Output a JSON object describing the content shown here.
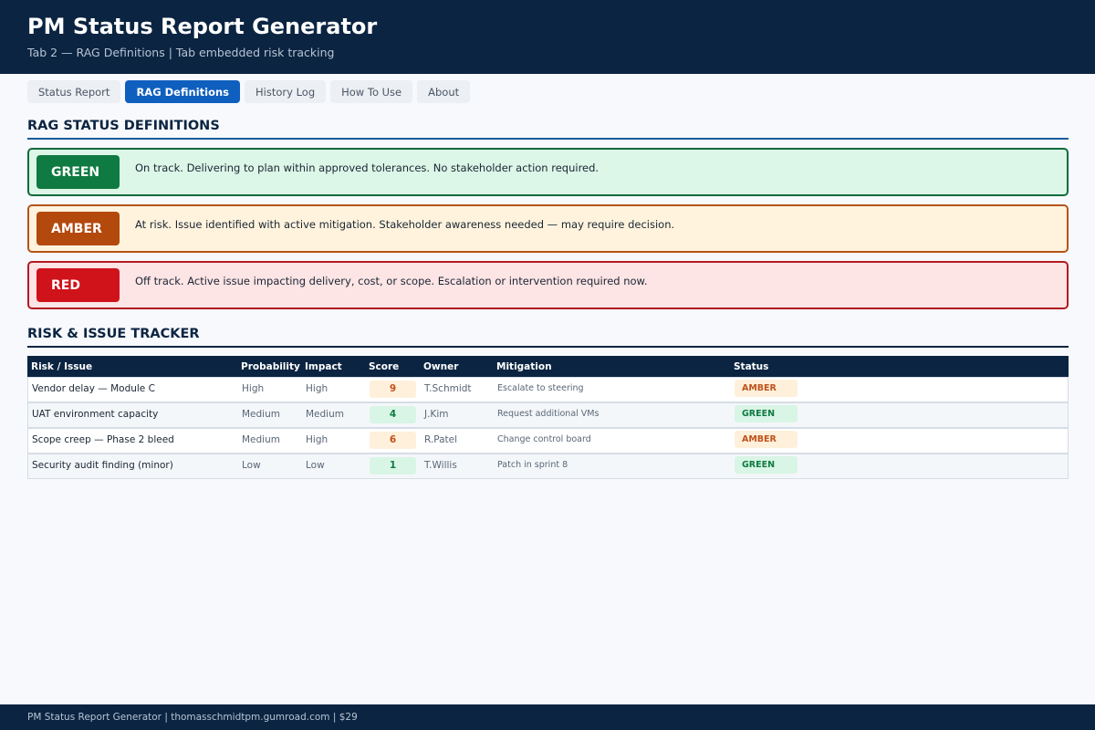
{
  "header": {
    "title": "PM Status Report Generator",
    "subtitle": "Tab 2 — RAG Definitions  |  Tab embedded risk tracking"
  },
  "tabs": [
    {
      "label": "Status Report",
      "active": false
    },
    {
      "label": "RAG Definitions",
      "active": true
    },
    {
      "label": "History Log",
      "active": false
    },
    {
      "label": "How To Use",
      "active": false
    },
    {
      "label": "About",
      "active": false
    }
  ],
  "rag": {
    "section_title": "RAG STATUS DEFINITIONS",
    "items": [
      {
        "label": "GREEN",
        "description": "On track. Delivering to plan within approved tolerances. No stakeholder action required.",
        "color": "#0f7a41"
      },
      {
        "label": "AMBER",
        "description": "At risk. Issue identified with active mitigation. Stakeholder awareness needed — may require decision.",
        "color": "#b4490e"
      },
      {
        "label": "RED",
        "description": "Off track. Active issue impacting delivery, cost, or scope. Escalation or intervention required now.",
        "color": "#d0121b"
      }
    ]
  },
  "risk": {
    "section_title": "RISK & ISSUE TRACKER",
    "columns": [
      "Risk / Issue",
      "Probability",
      "Impact",
      "Score",
      "Owner",
      "Mitigation",
      "Status"
    ],
    "rows": [
      {
        "risk": "Vendor delay — Module C",
        "probability": "High",
        "impact": "High",
        "score": "9",
        "owner": "T.Schmidt",
        "mitigation": "Escalate to steering",
        "status": "AMBER"
      },
      {
        "risk": "UAT environment capacity",
        "probability": "Medium",
        "impact": "Medium",
        "score": "4",
        "owner": "J.Kim",
        "mitigation": "Request additional VMs",
        "status": "GREEN"
      },
      {
        "risk": "Scope creep — Phase 2 bleed",
        "probability": "Medium",
        "impact": "High",
        "score": "6",
        "owner": "R.Patel",
        "mitigation": "Change control board",
        "status": "AMBER"
      },
      {
        "risk": "Security audit finding (minor)",
        "probability": "Low",
        "impact": "Low",
        "score": "1",
        "owner": "T.Willis",
        "mitigation": "Patch in sprint 8",
        "status": "GREEN"
      }
    ]
  },
  "footer": {
    "text": "PM Status Report Generator  |  thomasschmidtpm.gumroad.com  |  $29"
  }
}
